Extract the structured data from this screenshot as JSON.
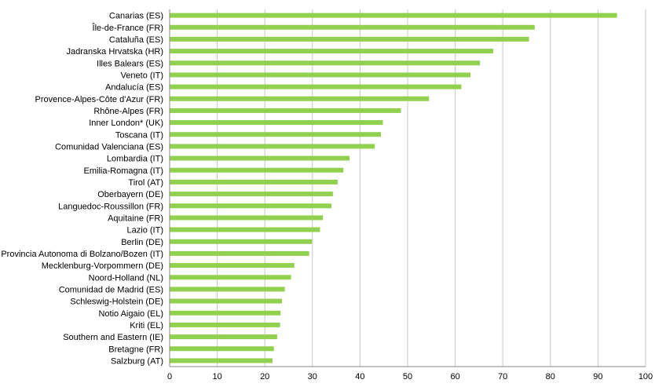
{
  "chart_data": {
    "type": "bar",
    "orientation": "horizontal",
    "title": "",
    "xlabel": "",
    "ylabel": "",
    "xlim": [
      0,
      100
    ],
    "ticks": [
      "0",
      "10",
      "20",
      "30",
      "40",
      "50",
      "60",
      "70",
      "80",
      "90",
      "100"
    ],
    "grid": true,
    "legend": "none",
    "bar_color": "#92d050",
    "categories": [
      "Canarias (ES)",
      "Île-de-France (FR)",
      "Cataluña (ES)",
      "Jadranska Hrvatska (HR)",
      "Illes Balears (ES)",
      "Veneto (IT)",
      "Andalucía (ES)",
      "Provence-Alpes-Côte d'Azur (FR)",
      "Rhône-Alpes (FR)",
      "Inner London* (UK)",
      "Toscana (IT)",
      "Comunidad Valenciana (ES)",
      "Lombardia (IT)",
      "Emilia-Romagna (IT)",
      "Tirol (AT)",
      "Oberbayern (DE)",
      "Languedoc-Roussillon (FR)",
      "Aquitaine (FR)",
      "Lazio (IT)",
      "Berlin (DE)",
      "Provincia Autonoma di Bolzano/Bozen (IT)",
      "Mecklenburg-Vorpommern (DE)",
      "Noord-Holland (NL)",
      "Comunidad de Madrid (ES)",
      "Schleswig-Holstein (DE)",
      "Notio Aigaio (EL)",
      "Kriti (EL)",
      "Southern and Eastern (IE)",
      "Bretagne (FR)",
      "Salzburg (AT)"
    ],
    "values": [
      94,
      76.7,
      75.5,
      68,
      65.2,
      63.2,
      61.3,
      54.5,
      48.6,
      44.8,
      44.4,
      43.1,
      37.8,
      36.5,
      35.3,
      34.3,
      34.0,
      32.2,
      31.6,
      29.9,
      29.3,
      26.2,
      25.5,
      24.2,
      23.6,
      23.3,
      23.2,
      22.6,
      21.9,
      21.6
    ]
  }
}
